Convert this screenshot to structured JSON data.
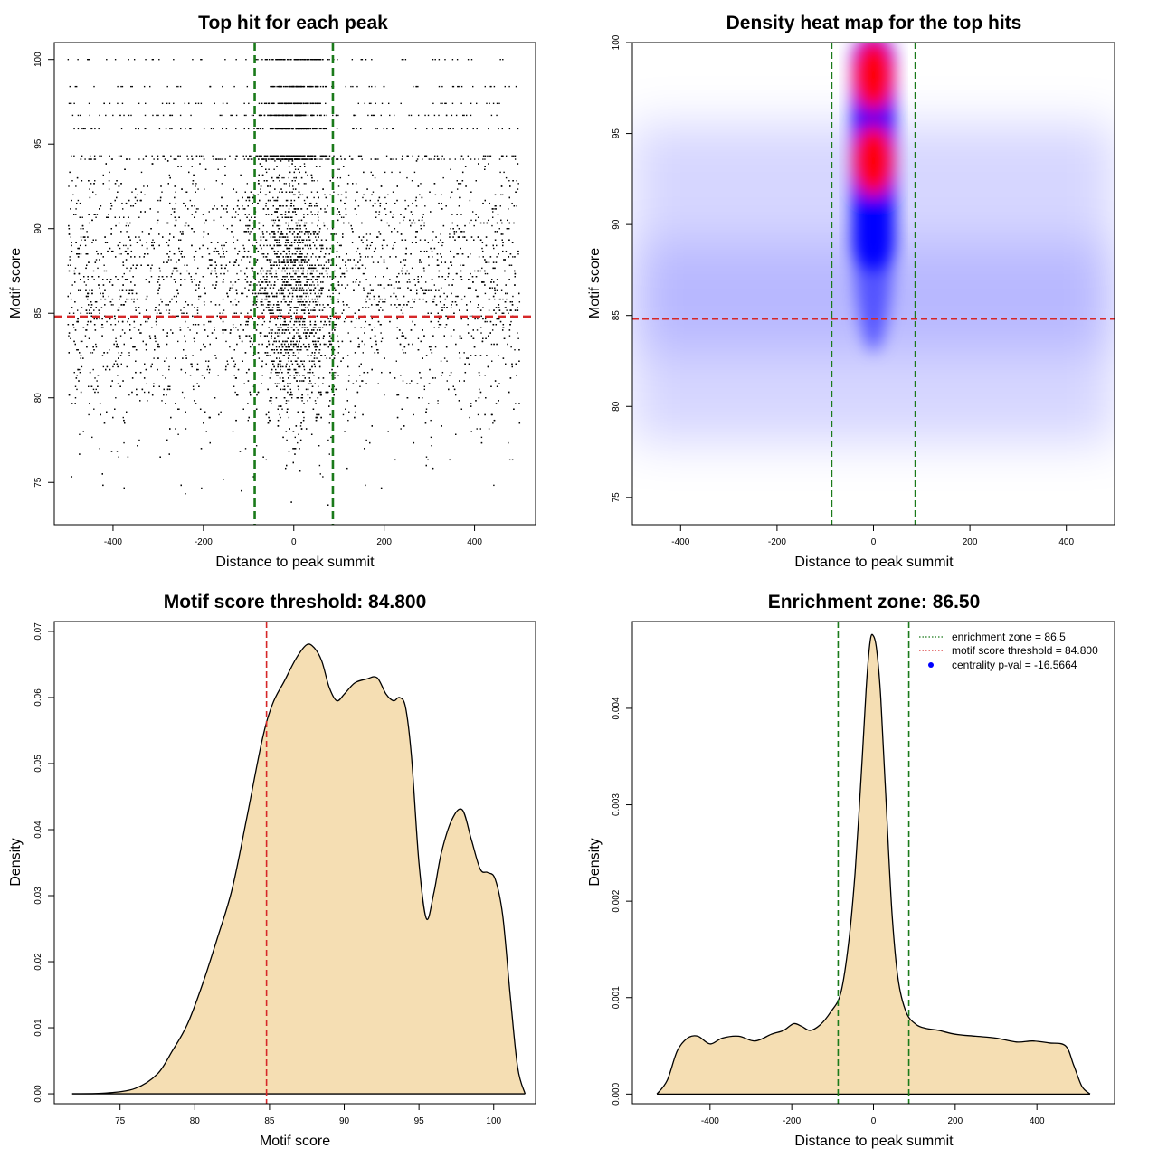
{
  "chart_data": [
    {
      "id": "scatter",
      "type": "scatter",
      "title": "Top hit for each peak",
      "xlabel": "Distance to peak summit",
      "ylabel": "Motif score",
      "xlim": [
        -530,
        535
      ],
      "ylim": [
        72.5,
        101
      ],
      "xticks": [
        -400,
        -200,
        0,
        200,
        400
      ],
      "yticks": [
        75,
        80,
        85,
        90,
        95,
        100
      ],
      "threshold": 84.8,
      "enrichment_zone": [
        -86.5,
        86.5
      ],
      "colors": {
        "points": "#000000",
        "threshold": "#d62728",
        "zone": "#1a7a1a"
      },
      "point_count_estimate": 9000,
      "score_levels_discrete": [
        100,
        98.4,
        97.4,
        96.7,
        95.9,
        94.3,
        94.1
      ],
      "continuous_score_range": [
        73.6,
        94.0
      ],
      "x_range_of_points": [
        -500,
        500
      ]
    },
    {
      "id": "heatmap",
      "type": "heatmap",
      "title": "Density heat map for the top hits",
      "xlabel": "Distance to peak summit",
      "ylabel": "Motif score",
      "xlim": [
        -500,
        500
      ],
      "ylim": [
        73.5,
        100
      ],
      "xticks": [
        -400,
        -200,
        0,
        200,
        400
      ],
      "yticks": [
        75,
        80,
        85,
        90,
        95,
        100
      ],
      "threshold": 84.8,
      "enrichment_zone": [
        -86.5,
        86.5
      ],
      "color_scale": [
        "#ffffff",
        "#0000ff",
        "#ff0000"
      ],
      "hotspots": [
        {
          "x": 0,
          "y": 98.2,
          "level": "high"
        },
        {
          "x": 0,
          "y": 93.5,
          "level": "high"
        },
        {
          "x": 0,
          "y": 89.5,
          "level": "medium"
        }
      ]
    },
    {
      "id": "score-density",
      "type": "area",
      "title": "Motif score threshold: 84.800",
      "xlabel": "Motif score",
      "ylabel": "Density",
      "xlim": [
        70.6,
        102.8
      ],
      "ylim": [
        -0.0015,
        0.0715
      ],
      "xticks": [
        75,
        80,
        85,
        90,
        95,
        100
      ],
      "yticks": [
        0.0,
        0.01,
        0.02,
        0.03,
        0.04,
        0.05,
        0.06,
        0.07
      ],
      "ytick_labels": [
        "0.00",
        "0.01",
        "0.02",
        "0.03",
        "0.04",
        "0.05",
        "0.06",
        "0.07"
      ],
      "threshold": 84.8,
      "fill": "#f5deb3",
      "x": [
        71.8,
        74,
        76,
        77.5,
        78.5,
        79.5,
        80.5,
        81.5,
        82.5,
        83.5,
        84.5,
        85.2,
        86,
        86.8,
        87.5,
        88,
        88.5,
        89,
        89.5,
        90,
        90.7,
        91.5,
        92.2,
        92.8,
        93.3,
        93.7,
        94.1,
        94.5,
        95,
        95.5,
        96,
        96.5,
        97.2,
        97.9,
        98.5,
        99.1,
        99.6,
        100.1,
        100.6,
        101.1,
        101.6,
        102.1
      ],
      "y": [
        0,
        0.0001,
        0.0008,
        0.003,
        0.0065,
        0.0105,
        0.0165,
        0.0235,
        0.031,
        0.042,
        0.0535,
        0.059,
        0.0625,
        0.066,
        0.068,
        0.0675,
        0.0655,
        0.0615,
        0.0595,
        0.0605,
        0.0622,
        0.0628,
        0.063,
        0.0605,
        0.0595,
        0.06,
        0.0585,
        0.051,
        0.035,
        0.0265,
        0.0305,
        0.0365,
        0.0415,
        0.043,
        0.0385,
        0.034,
        0.0335,
        0.0325,
        0.027,
        0.015,
        0.004,
        0
      ]
    },
    {
      "id": "distance-density",
      "type": "area",
      "title": "Enrichment zone: 86.50",
      "xlabel": "Distance to peak summit",
      "ylabel": "Density",
      "xlim": [
        -590,
        590
      ],
      "ylim": [
        -0.0001,
        0.0049
      ],
      "xticks": [
        -400,
        -200,
        0,
        200,
        400
      ],
      "yticks": [
        0.0,
        0.001,
        0.002,
        0.003,
        0.004
      ],
      "ytick_labels": [
        "0.000",
        "0.001",
        "0.002",
        "0.003",
        "0.004"
      ],
      "enrichment_zone": [
        -86.5,
        86.5
      ],
      "fill": "#f5deb3",
      "x": [
        -530,
        -505,
        -480,
        -455,
        -430,
        -400,
        -370,
        -330,
        -290,
        -250,
        -220,
        -195,
        -175,
        -155,
        -130,
        -105,
        -80,
        -60,
        -45,
        -30,
        -18,
        -8,
        0,
        8,
        18,
        30,
        45,
        60,
        80,
        105,
        130,
        160,
        200,
        250,
        300,
        350,
        390,
        430,
        470,
        490,
        510,
        530
      ],
      "y": [
        0,
        0.00014,
        0.00045,
        0.00058,
        0.0006,
        0.00052,
        0.00058,
        0.0006,
        0.00055,
        0.00062,
        0.00066,
        0.00073,
        0.0007,
        0.00066,
        0.00072,
        0.00085,
        0.00105,
        0.0016,
        0.0023,
        0.0033,
        0.0042,
        0.0047,
        0.00475,
        0.0046,
        0.0041,
        0.0031,
        0.0019,
        0.0012,
        0.00085,
        0.00072,
        0.00068,
        0.00066,
        0.00062,
        0.0006,
        0.00058,
        0.00054,
        0.00055,
        0.00053,
        0.0005,
        0.0003,
        8e-05,
        0
      ],
      "legend": {
        "position": "top-right",
        "entries": [
          {
            "label": "enrichment zone = 86.5",
            "style": "dotted",
            "color": "#1a7a1a"
          },
          {
            "label": "motif score threshold = 84.800",
            "style": "dotted",
            "color": "#d62728"
          },
          {
            "label": "centrality p-val = -16.5664",
            "style": "dot",
            "color": "#0000ff"
          }
        ]
      }
    }
  ]
}
